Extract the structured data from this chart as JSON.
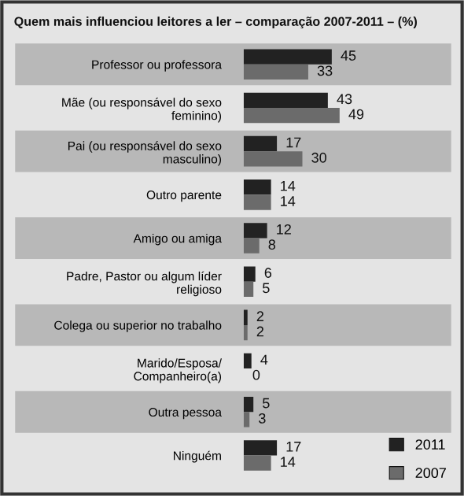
{
  "chart_data": {
    "type": "bar",
    "orientation": "horizontal",
    "title": "Quem mais influenciou leitores a ler – comparação 2007-2011 – (%)",
    "categories": [
      "Professor ou professora",
      "Mãe (ou responsável do sexo\nfeminino)",
      "Pai (ou responsável do sexo\nmasculino)",
      "Outro parente",
      "Amigo ou amiga",
      "Padre, Pastor ou algum líder\nreligioso",
      "Colega ou superior no trabalho",
      "Marido/Esposa/\nCompanheiro(a)",
      "Outra pessoa",
      "Ninguém"
    ],
    "series": [
      {
        "name": "2011",
        "color": "#222222",
        "values": [
          45,
          43,
          17,
          14,
          12,
          6,
          2,
          4,
          5,
          17
        ]
      },
      {
        "name": "2007",
        "color": "#6b6b6b",
        "values": [
          33,
          49,
          30,
          14,
          8,
          5,
          2,
          0,
          3,
          14
        ]
      }
    ],
    "data_labels": true,
    "legend": "bottom right",
    "grid": false
  }
}
